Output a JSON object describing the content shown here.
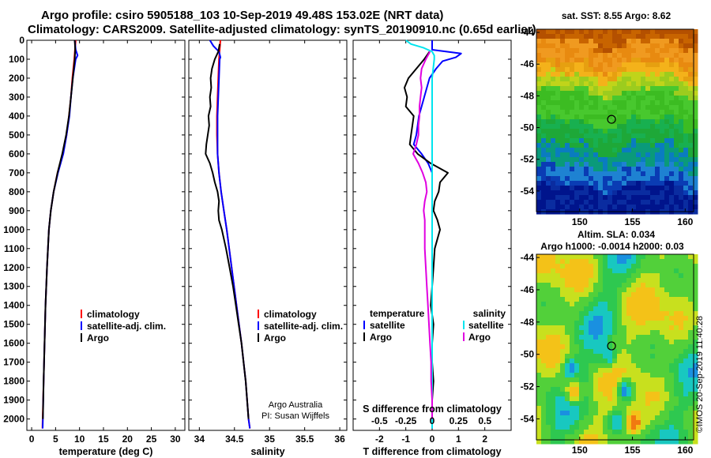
{
  "title": {
    "line1": "Argo profile: csiro 5905188_103 10-Sep-2019 49.48S 153.02E (NRT data)",
    "line2": "Climatology: CARS2009. Satellite-adjusted climatology: synTS_20190910.nc (0.65d earlier)"
  },
  "colors": {
    "climatology": "#ff0000",
    "satellite": "#0000ff",
    "argo": "#000000",
    "sat_salinity": "#00e5ee",
    "argo_salinity_diff": "#e000e0"
  },
  "chart_data": [
    {
      "id": "temperature",
      "type": "line",
      "xlabel": "temperature (deg C)",
      "xlim": [
        -1,
        32
      ],
      "xticks": [
        0,
        5,
        10,
        15,
        20,
        25,
        30
      ],
      "xtick_labels": [
        "0",
        "5",
        "10",
        "15",
        "20",
        "25",
        "30"
      ],
      "ylim": [
        2060,
        0
      ],
      "yticks": [
        0,
        100,
        200,
        300,
        400,
        500,
        600,
        700,
        800,
        900,
        1000,
        1100,
        1200,
        1300,
        1400,
        1500,
        1600,
        1700,
        1800,
        1900,
        2000
      ],
      "ytick_labels": [
        "0",
        "100",
        "200",
        "300",
        "400",
        "500",
        "600",
        "700",
        "800",
        "900",
        "1000",
        "1100",
        "1200",
        "1300",
        "1400",
        "1500",
        "1600",
        "1700",
        "1800",
        "1900",
        "2000"
      ],
      "legend": [
        "climatology",
        "satellite-adj. clim.",
        "Argo"
      ],
      "series": [
        {
          "name": "climatology",
          "color": "#ff0000",
          "depth": [
            0,
            100,
            200,
            300,
            400,
            500,
            600,
            700,
            800,
            900,
            1000,
            1200,
            1400,
            1600,
            1800,
            2000,
            2050
          ],
          "values": [
            9.2,
            8.9,
            8.5,
            8.2,
            7.8,
            7.3,
            6.5,
            5.4,
            4.6,
            4.0,
            3.6,
            3.2,
            2.9,
            2.7,
            2.5,
            2.3,
            2.25
          ]
        },
        {
          "name": "satellite-adj. clim.",
          "color": "#0000ff",
          "depth": [
            0,
            50,
            80,
            100,
            200,
            300,
            400,
            500,
            600,
            700,
            800,
            900,
            1000,
            1200,
            1400,
            1600,
            1800,
            2000,
            2050
          ],
          "values": [
            9.0,
            9.2,
            9.6,
            9.2,
            8.6,
            8.2,
            7.9,
            7.3,
            6.6,
            5.5,
            4.6,
            4.0,
            3.6,
            3.2,
            2.9,
            2.7,
            2.5,
            2.35,
            2.3
          ]
        },
        {
          "name": "Argo",
          "color": "#000000",
          "depth": [
            0,
            50,
            100,
            200,
            300,
            400,
            500,
            600,
            700,
            800,
            900,
            1000,
            1200,
            1400,
            1600,
            1800,
            2000
          ],
          "values": [
            9.0,
            9.1,
            9.0,
            8.6,
            8.2,
            7.8,
            7.2,
            6.4,
            5.4,
            4.6,
            4.0,
            3.6,
            3.2,
            2.9,
            2.7,
            2.5,
            2.35
          ]
        }
      ]
    },
    {
      "id": "salinity",
      "type": "line",
      "xlabel": "salinity",
      "xlim": [
        33.85,
        36.1
      ],
      "xticks": [
        34,
        34.5,
        35,
        35.5,
        36
      ],
      "xtick_labels": [
        "34",
        "34.5",
        "35",
        "35.5",
        "36"
      ],
      "ylim": [
        2060,
        0
      ],
      "legend": [
        "climatology",
        "satellite-adj. clim.",
        "Argo"
      ],
      "series": [
        {
          "name": "climatology",
          "color": "#ff0000",
          "depth": [
            0,
            100,
            200,
            300,
            400,
            500,
            600,
            700,
            800,
            900,
            1000,
            1200,
            1400,
            1600,
            1800,
            2000,
            2050
          ],
          "values": [
            34.3,
            34.28,
            34.27,
            34.26,
            34.25,
            34.25,
            34.26,
            34.28,
            34.31,
            34.35,
            34.39,
            34.46,
            34.53,
            34.6,
            34.66,
            34.7,
            34.72
          ]
        },
        {
          "name": "satellite-adj. clim.",
          "color": "#0000ff",
          "depth": [
            0,
            30,
            60,
            90,
            100,
            200,
            300,
            400,
            500,
            600,
            700,
            800,
            900,
            1000,
            1200,
            1400,
            1600,
            1800,
            2000,
            2050
          ],
          "values": [
            34.15,
            34.2,
            34.28,
            34.3,
            34.29,
            34.28,
            34.27,
            34.26,
            34.26,
            34.26,
            34.28,
            34.31,
            34.35,
            34.39,
            34.46,
            34.53,
            34.6,
            34.66,
            34.7,
            34.72
          ]
        },
        {
          "name": "Argo",
          "color": "#000000",
          "depth": [
            20,
            60,
            100,
            150,
            200,
            250,
            300,
            350,
            400,
            450,
            500,
            550,
            600,
            650,
            700,
            750,
            800,
            850,
            900,
            950,
            1000,
            1100,
            1200,
            1300,
            1400,
            1500,
            1600,
            1700,
            1800,
            1900,
            2000
          ],
          "values": [
            34.29,
            34.27,
            34.22,
            34.18,
            34.16,
            34.17,
            34.15,
            34.16,
            34.13,
            34.14,
            34.12,
            34.1,
            34.09,
            34.15,
            34.19,
            34.22,
            34.26,
            34.28,
            34.27,
            34.28,
            34.32,
            34.38,
            34.43,
            34.48,
            34.52,
            34.56,
            34.6,
            34.63,
            34.66,
            34.68,
            34.7
          ]
        }
      ],
      "annotation": [
        "Argo Australia",
        "PI: Susan Wijffels"
      ]
    },
    {
      "id": "difference",
      "type": "line",
      "xlabel": "T difference from climatology",
      "xlabel_top": "S difference from climatology",
      "xlim": [
        -3,
        3
      ],
      "xticks": [
        -2,
        -1,
        0,
        1,
        2
      ],
      "xtick_labels": [
        "-2",
        "-1",
        "0",
        "1",
        "2"
      ],
      "s_ticks": [
        -0.5,
        -0.25,
        0,
        0.25,
        0.5
      ],
      "s_tick_labels": [
        "-0.5",
        "-0.25",
        "0",
        "0.25",
        "0.5"
      ],
      "s_scale": 4,
      "ylim": [
        2060,
        0
      ],
      "legend_left_title": "temperature",
      "legend_right_title": "salinity",
      "legend_left": [
        "satellite",
        "Argo"
      ],
      "legend_right": [
        "satellite",
        "Argo"
      ],
      "series": [
        {
          "name": "T satellite",
          "color": "#0000ff",
          "depth": [
            0,
            50,
            70,
            90,
            110,
            150,
            200,
            300,
            400,
            500,
            550,
            600,
            650,
            700,
            800,
            900,
            1000,
            1200,
            1400,
            1600,
            1800,
            2000,
            2050
          ],
          "values": [
            0,
            0,
            1.1,
            0.9,
            0.4,
            0.15,
            -0.1,
            -0.3,
            -0.5,
            -0.6,
            -0.7,
            -0.4,
            -0.15,
            0,
            0,
            0,
            0,
            0,
            0,
            0,
            0,
            0,
            0
          ]
        },
        {
          "name": "T Argo",
          "color": "#000000",
          "depth": [
            60,
            100,
            150,
            200,
            250,
            300,
            350,
            400,
            450,
            500,
            550,
            600,
            650,
            700,
            750,
            800,
            850,
            900,
            950,
            1000,
            1100,
            1200,
            1300,
            1400,
            1500,
            1600,
            1700,
            1800,
            1900,
            2000
          ],
          "values": [
            -0.1,
            -0.3,
            -0.6,
            -0.9,
            -1.05,
            -0.95,
            -1.0,
            -0.7,
            -0.75,
            -0.8,
            -0.85,
            -0.55,
            -0.05,
            0.6,
            0.3,
            0.25,
            0.1,
            0.05,
            0.2,
            0.3,
            0.1,
            0.05,
            0.0,
            -0.05,
            0.05,
            0.0,
            0.0,
            0.05,
            0.0,
            0.0
          ]
        },
        {
          "name": "S satellite",
          "color": "#00e5ee",
          "depth": [
            0,
            20,
            40,
            60,
            80,
            100,
            200,
            400,
            600,
            800,
            1000,
            1200,
            1400,
            1600,
            1800,
            2000,
            2050
          ],
          "values": [
            -0.25,
            -0.2,
            -0.08,
            0.0,
            0.02,
            0.02,
            0.0,
            0.0,
            0.0,
            0.0,
            0.0,
            0.0,
            0.0,
            0.0,
            0.0,
            0.0,
            0.0
          ]
        },
        {
          "name": "S Argo",
          "color": "#e000e0",
          "depth": [
            60,
            100,
            150,
            200,
            250,
            300,
            350,
            400,
            450,
            500,
            550,
            600,
            650,
            700,
            750,
            800,
            850,
            900,
            950,
            1000,
            1100,
            1200,
            1300,
            1400,
            1500,
            1600,
            1700,
            1800,
            1900,
            2000
          ],
          "values": [
            -0.02,
            -0.06,
            -0.1,
            -0.11,
            -0.1,
            -0.11,
            -0.12,
            -0.12,
            -0.13,
            -0.13,
            -0.15,
            -0.18,
            -0.13,
            -0.09,
            -0.06,
            -0.05,
            -0.07,
            -0.08,
            -0.07,
            -0.07,
            -0.07,
            -0.06,
            -0.05,
            -0.04,
            -0.03,
            -0.02,
            -0.01,
            -0.01,
            0.0,
            0.0
          ]
        }
      ]
    },
    {
      "id": "sst_map",
      "type": "heatmap",
      "title": "sat. SST: 8.55 Argo: 8.62",
      "xlim": [
        145.9,
        160.8
      ],
      "ylim": [
        -55.3,
        -43.8
      ],
      "xticks": [
        150,
        155,
        160
      ],
      "xtick_labels": [
        "150",
        "155",
        "160"
      ],
      "yticks": [
        -44,
        -46,
        -48,
        -50,
        -52,
        -54
      ],
      "ytick_labels": [
        "-44",
        "-46",
        "-48",
        "-50",
        "-52",
        "-54"
      ],
      "marker": {
        "lon": 153.02,
        "lat": -49.48
      }
    },
    {
      "id": "sla_map",
      "type": "heatmap",
      "title_line1": "Altim. SLA: 0.034",
      "title_line2": "Argo h1000: -0.0014 h2000: 0.03",
      "xlim": [
        145.9,
        160.8
      ],
      "ylim": [
        -55.3,
        -43.8
      ],
      "xticks": [
        150,
        155,
        160
      ],
      "xtick_labels": [
        "150",
        "155",
        "160"
      ],
      "yticks": [
        -44,
        -46,
        -48,
        -50,
        -52,
        -54
      ],
      "ytick_labels": [
        "-44",
        "-46",
        "-48",
        "-50",
        "-52",
        "-54"
      ],
      "marker": {
        "lon": 153.02,
        "lat": -49.48
      }
    }
  ],
  "footer": {
    "credit": "©IMOS 20-Sep-2019 11:40:28"
  }
}
